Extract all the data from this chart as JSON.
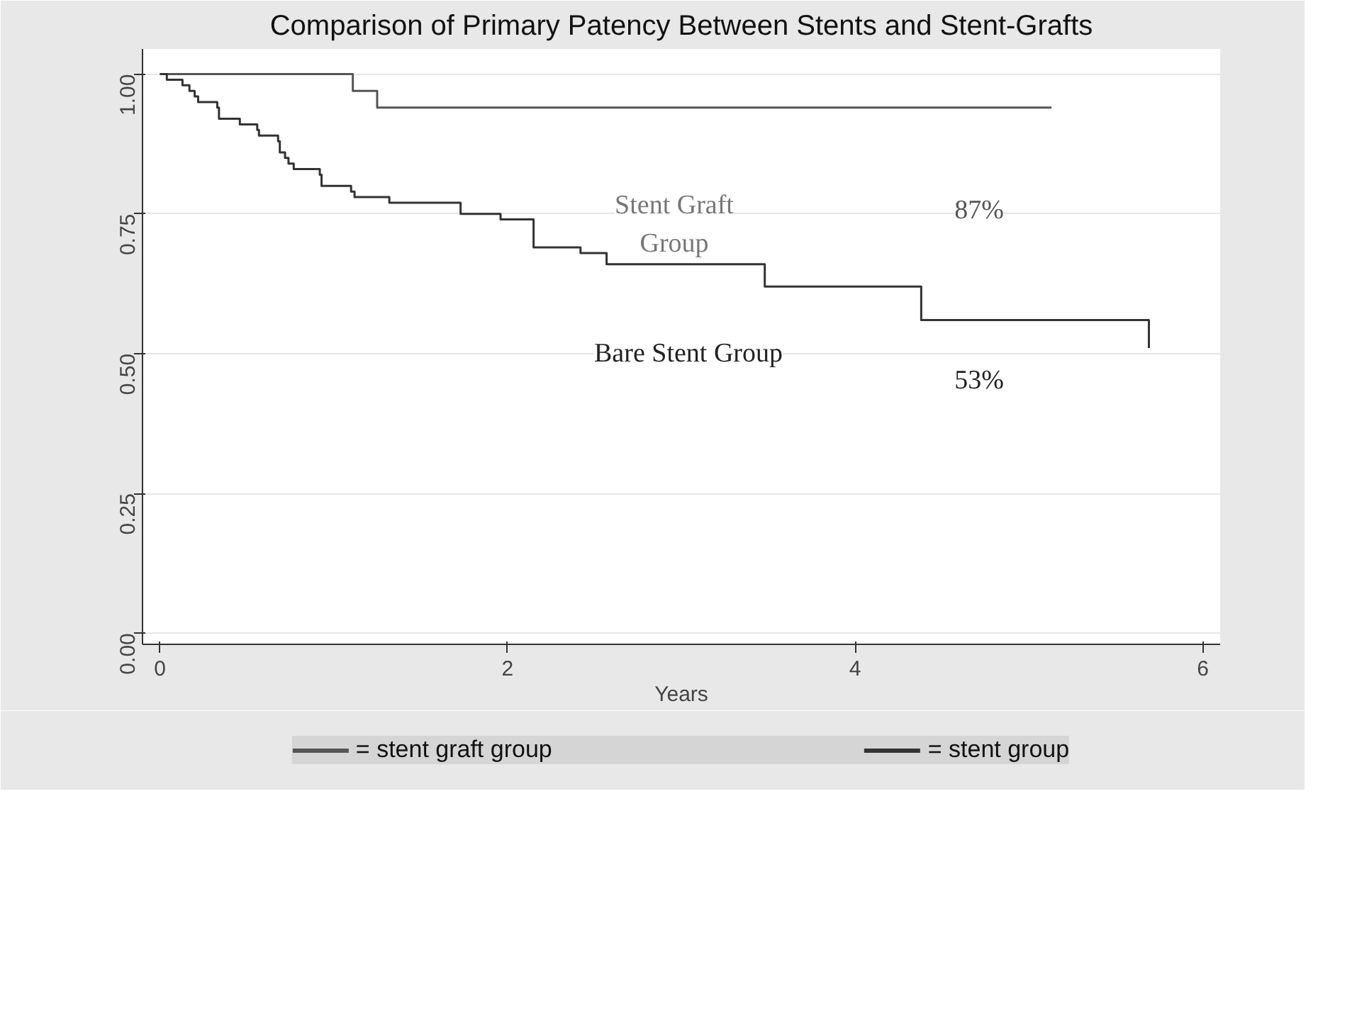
{
  "chart_data": {
    "type": "step",
    "title": "Comparison of Primary Patency Between Stents and Stent-Grafts",
    "xlabel": "Years",
    "xlim": [
      -0.1,
      6.1
    ],
    "xticks": [
      0,
      2,
      4,
      6
    ],
    "ylim": [
      -0.02,
      1.045
    ],
    "yticks": [
      {
        "value": 0,
        "label": "0.00"
      },
      {
        "value": 0.25,
        "label": "0.25"
      },
      {
        "value": 0.5,
        "label": "0.50"
      },
      {
        "value": 0.75,
        "label": "0.75"
      },
      {
        "value": 1,
        "label": "1.00"
      }
    ],
    "grid": "y",
    "legend": "bottom",
    "line_style": "solid",
    "marker": "none",
    "series": [
      {
        "name": "= stent graft group",
        "color": "#555555",
        "x": [
          0,
          1.11,
          1.25,
          5.13
        ],
        "values": [
          1.0,
          0.97,
          0.94,
          0.94
        ]
      },
      {
        "name": "= stent group",
        "color": "#333333",
        "x": [
          0,
          0.04,
          0.08,
          0.13,
          0.17,
          0.2,
          0.22,
          0.33,
          0.34,
          0.46,
          0.56,
          0.57,
          0.68,
          0.69,
          0.72,
          0.74,
          0.77,
          0.92,
          0.93,
          1.1,
          1.12,
          1.32,
          1.73,
          1.96,
          2.15,
          2.42,
          2.57,
          3.48,
          4.38,
          5.69
        ],
        "values": [
          1.0,
          0.99,
          0.99,
          0.98,
          0.97,
          0.96,
          0.95,
          0.94,
          0.92,
          0.91,
          0.9,
          0.89,
          0.88,
          0.86,
          0.85,
          0.84,
          0.83,
          0.82,
          0.8,
          0.79,
          0.78,
          0.77,
          0.75,
          0.74,
          0.69,
          0.68,
          0.66,
          0.62,
          0.56,
          0.51
        ]
      }
    ],
    "annotations": [
      "Stent Graft\nGroup",
      "87%",
      "Bare Stent Group",
      "53%"
    ]
  }
}
